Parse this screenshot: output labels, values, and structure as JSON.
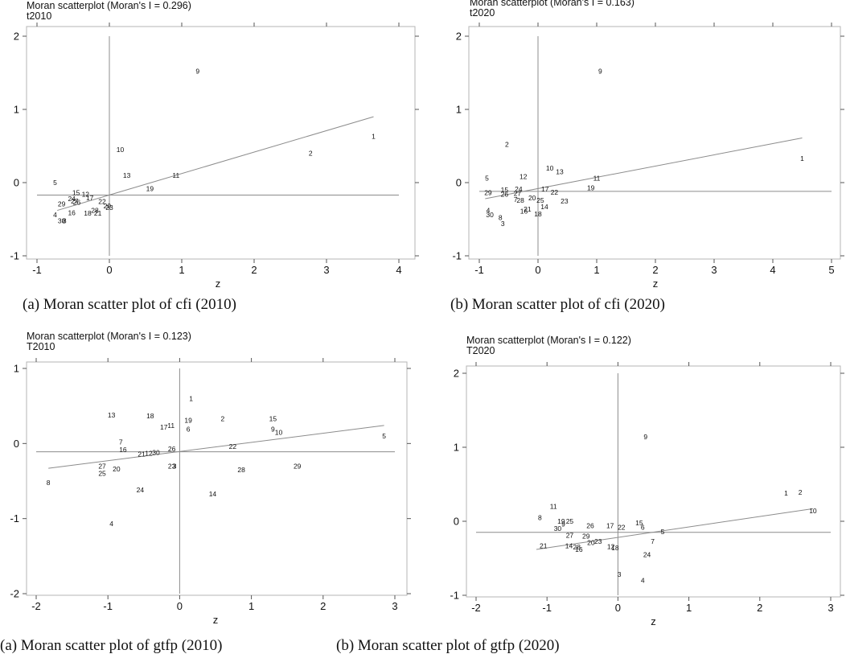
{
  "figure": {
    "captions": [
      "(a) Moran scatter plot of cfi (2010)",
      "(b) Moran scatter plot of cfi (2020)",
      "(a) Moran scatter plot of gtfp (2010)",
      "(b) Moran scatter plot of gtfp (2020)"
    ]
  },
  "chart_data": [
    {
      "type": "scatter",
      "title": "Moran scatterplot (Moran's I = 0.296)",
      "variable": "t2010",
      "xlabel": "z",
      "ylabel": "",
      "xlim": [
        -1,
        4
      ],
      "ylim": [
        -1,
        2
      ],
      "xticks": [
        -1,
        0,
        1,
        2,
        3,
        4
      ],
      "yticks": [
        -1,
        0,
        1,
        2
      ],
      "mean_y": -0.17,
      "fit_line": {
        "x": [
          -0.72,
          3.65
        ],
        "y": [
          -0.38,
          0.9
        ]
      },
      "points": [
        {
          "label": "9",
          "x": 1.22,
          "y": 1.52
        },
        {
          "label": "1",
          "x": 3.65,
          "y": 0.63
        },
        {
          "label": "2",
          "x": 2.78,
          "y": 0.4
        },
        {
          "label": "10",
          "x": 0.15,
          "y": 0.45
        },
        {
          "label": "11",
          "x": 0.92,
          "y": 0.1
        },
        {
          "label": "13",
          "x": 0.24,
          "y": 0.1
        },
        {
          "label": "19",
          "x": 0.56,
          "y": -0.08
        },
        {
          "label": "5",
          "x": -0.75,
          "y": 0.0
        },
        {
          "label": "15",
          "x": -0.46,
          "y": -0.14
        },
        {
          "label": "12",
          "x": -0.33,
          "y": -0.16
        },
        {
          "label": "17",
          "x": -0.27,
          "y": -0.21
        },
        {
          "label": "24",
          "x": -0.52,
          "y": -0.22
        },
        {
          "label": "27",
          "x": -0.48,
          "y": -0.25
        },
        {
          "label": "26",
          "x": -0.45,
          "y": -0.27
        },
        {
          "label": "29",
          "x": -0.66,
          "y": -0.29
        },
        {
          "label": "22",
          "x": -0.1,
          "y": -0.26
        },
        {
          "label": "20",
          "x": -0.03,
          "y": -0.32
        },
        {
          "label": "23",
          "x": 0.0,
          "y": -0.34
        },
        {
          "label": "16",
          "x": -0.52,
          "y": -0.41
        },
        {
          "label": "28",
          "x": -0.2,
          "y": -0.38
        },
        {
          "label": "18",
          "x": -0.3,
          "y": -0.42
        },
        {
          "label": "21",
          "x": -0.16,
          "y": -0.42
        },
        {
          "label": "4",
          "x": -0.75,
          "y": -0.44
        },
        {
          "label": "30",
          "x": -0.66,
          "y": -0.52
        },
        {
          "label": "8",
          "x": -0.62,
          "y": -0.52
        }
      ]
    },
    {
      "type": "scatter",
      "title": "Moran scatterplot (Moran's I = 0.163)",
      "variable": "t2020",
      "xlabel": "z",
      "ylabel": "",
      "xlim": [
        -1,
        5
      ],
      "ylim": [
        -1,
        2
      ],
      "xticks": [
        -1,
        0,
        1,
        2,
        3,
        4,
        5
      ],
      "yticks": [
        -1,
        0,
        1,
        2
      ],
      "mean_y": -0.12,
      "fit_line": {
        "x": [
          -0.9,
          4.5
        ],
        "y": [
          -0.22,
          0.61
        ]
      },
      "points": [
        {
          "label": "9",
          "x": 1.06,
          "y": 1.52
        },
        {
          "label": "1",
          "x": 4.5,
          "y": 0.33
        },
        {
          "label": "2",
          "x": -0.53,
          "y": 0.52
        },
        {
          "label": "10",
          "x": 0.2,
          "y": 0.2
        },
        {
          "label": "13",
          "x": 0.37,
          "y": 0.15
        },
        {
          "label": "11",
          "x": 1.0,
          "y": 0.06
        },
        {
          "label": "12",
          "x": -0.25,
          "y": 0.08
        },
        {
          "label": "5",
          "x": -0.87,
          "y": 0.06
        },
        {
          "label": "19",
          "x": 0.9,
          "y": -0.07
        },
        {
          "label": "24",
          "x": -0.33,
          "y": -0.09
        },
        {
          "label": "15",
          "x": -0.57,
          "y": -0.1
        },
        {
          "label": "29",
          "x": -0.85,
          "y": -0.14
        },
        {
          "label": "26",
          "x": -0.57,
          "y": -0.16
        },
        {
          "label": "27",
          "x": -0.35,
          "y": -0.15
        },
        {
          "label": "17",
          "x": 0.12,
          "y": -0.09
        },
        {
          "label": "22",
          "x": 0.28,
          "y": -0.13
        },
        {
          "label": "20",
          "x": -0.1,
          "y": -0.21
        },
        {
          "label": "25",
          "x": 0.04,
          "y": -0.24
        },
        {
          "label": "7",
          "x": -0.38,
          "y": -0.23
        },
        {
          "label": "28",
          "x": -0.3,
          "y": -0.24
        },
        {
          "label": "23",
          "x": 0.45,
          "y": -0.25
        },
        {
          "label": "14",
          "x": 0.11,
          "y": -0.33
        },
        {
          "label": "21",
          "x": -0.18,
          "y": -0.36
        },
        {
          "label": "16",
          "x": -0.24,
          "y": -0.39
        },
        {
          "label": "18",
          "x": 0.0,
          "y": -0.43
        },
        {
          "label": "4",
          "x": -0.85,
          "y": -0.38
        },
        {
          "label": "30",
          "x": -0.82,
          "y": -0.44
        },
        {
          "label": "8",
          "x": -0.64,
          "y": -0.48
        },
        {
          "label": "3",
          "x": -0.6,
          "y": -0.56
        }
      ]
    },
    {
      "type": "scatter",
      "title": "Moran scatterplot (Moran's I = 0.123)",
      "variable": "T2010",
      "xlabel": "z",
      "ylabel": "",
      "xlim": [
        -2,
        3
      ],
      "ylim": [
        -2,
        1
      ],
      "xticks": [
        -2,
        -1,
        0,
        1,
        2,
        3
      ],
      "yticks": [
        -2,
        -1,
        0,
        1
      ],
      "mean_y": -0.11,
      "fit_line": {
        "x": [
          -1.83,
          2.85
        ],
        "y": [
          -0.33,
          0.24
        ]
      },
      "points": [
        {
          "label": "1",
          "x": 0.16,
          "y": 0.6
        },
        {
          "label": "13",
          "x": -0.95,
          "y": 0.38
        },
        {
          "label": "18",
          "x": -0.41,
          "y": 0.37
        },
        {
          "label": "17",
          "x": -0.22,
          "y": 0.22
        },
        {
          "label": "11",
          "x": -0.12,
          "y": 0.24
        },
        {
          "label": "19",
          "x": 0.12,
          "y": 0.31
        },
        {
          "label": "6",
          "x": 0.12,
          "y": 0.19
        },
        {
          "label": "2",
          "x": 0.6,
          "y": 0.33
        },
        {
          "label": "15",
          "x": 1.3,
          "y": 0.33
        },
        {
          "label": "9",
          "x": 1.3,
          "y": 0.19
        },
        {
          "label": "10",
          "x": 1.38,
          "y": 0.15
        },
        {
          "label": "5",
          "x": 2.85,
          "y": 0.1
        },
        {
          "label": "7",
          "x": -0.82,
          "y": 0.02
        },
        {
          "label": "16",
          "x": -0.79,
          "y": -0.08
        },
        {
          "label": "21",
          "x": -0.53,
          "y": -0.14
        },
        {
          "label": "12",
          "x": -0.43,
          "y": -0.13
        },
        {
          "label": "30",
          "x": -0.33,
          "y": -0.12
        },
        {
          "label": "26",
          "x": -0.11,
          "y": -0.07
        },
        {
          "label": "22",
          "x": 0.74,
          "y": -0.04
        },
        {
          "label": "27",
          "x": -1.08,
          "y": -0.3
        },
        {
          "label": "20",
          "x": -0.88,
          "y": -0.34
        },
        {
          "label": "25",
          "x": -1.08,
          "y": -0.4
        },
        {
          "label": "23",
          "x": -0.11,
          "y": -0.3
        },
        {
          "label": "3",
          "x": -0.07,
          "y": -0.3
        },
        {
          "label": "28",
          "x": 0.86,
          "y": -0.35
        },
        {
          "label": "29",
          "x": 1.64,
          "y": -0.3
        },
        {
          "label": "8",
          "x": -1.83,
          "y": -0.52
        },
        {
          "label": "24",
          "x": -0.55,
          "y": -0.62
        },
        {
          "label": "14",
          "x": 0.46,
          "y": -0.67
        },
        {
          "label": "4",
          "x": -0.95,
          "y": -1.07
        }
      ]
    },
    {
      "type": "scatter",
      "title": "Moran scatterplot (Moran's I = 0.122)",
      "variable": "T2020",
      "xlabel": "z",
      "ylabel": "",
      "xlim": [
        -2,
        3
      ],
      "ylim": [
        -1,
        2
      ],
      "xticks": [
        -2,
        -1,
        0,
        1,
        2,
        3
      ],
      "yticks": [
        -1,
        0,
        1,
        2
      ],
      "mean_y": -0.15,
      "fit_line": {
        "x": [
          -1.15,
          2.75
        ],
        "y": [
          -0.38,
          0.17
        ]
      },
      "points": [
        {
          "label": "9",
          "x": 0.39,
          "y": 1.14
        },
        {
          "label": "1",
          "x": 2.37,
          "y": 0.38
        },
        {
          "label": "2",
          "x": 2.57,
          "y": 0.39
        },
        {
          "label": "10",
          "x": 2.75,
          "y": 0.14
        },
        {
          "label": "11",
          "x": -0.91,
          "y": 0.2
        },
        {
          "label": "8",
          "x": -1.1,
          "y": 0.05
        },
        {
          "label": "19",
          "x": -0.8,
          "y": 0.0
        },
        {
          "label": "25",
          "x": -0.68,
          "y": 0.0
        },
        {
          "label": "9",
          "x": -0.77,
          "y": -0.04
        },
        {
          "label": "30",
          "x": -0.85,
          "y": -0.1
        },
        {
          "label": "26",
          "x": -0.39,
          "y": -0.06
        },
        {
          "label": "17",
          "x": -0.11,
          "y": -0.06
        },
        {
          "label": "22",
          "x": 0.05,
          "y": -0.08
        },
        {
          "label": "15",
          "x": 0.3,
          "y": -0.02
        },
        {
          "label": "6",
          "x": 0.35,
          "y": -0.08
        },
        {
          "label": "5",
          "x": 0.63,
          "y": -0.14
        },
        {
          "label": "27",
          "x": -0.68,
          "y": -0.19
        },
        {
          "label": "29",
          "x": -0.45,
          "y": -0.2
        },
        {
          "label": "7",
          "x": 0.49,
          "y": -0.27
        },
        {
          "label": "20",
          "x": -0.38,
          "y": -0.29
        },
        {
          "label": "23",
          "x": -0.28,
          "y": -0.27
        },
        {
          "label": "21",
          "x": -1.05,
          "y": -0.33
        },
        {
          "label": "14",
          "x": -0.69,
          "y": -0.33
        },
        {
          "label": "28",
          "x": -0.58,
          "y": -0.35
        },
        {
          "label": "16",
          "x": -0.55,
          "y": -0.38
        },
        {
          "label": "12",
          "x": -0.1,
          "y": -0.34
        },
        {
          "label": "18",
          "x": -0.04,
          "y": -0.36
        },
        {
          "label": "24",
          "x": 0.41,
          "y": -0.45
        },
        {
          "label": "3",
          "x": 0.02,
          "y": -0.72
        },
        {
          "label": "4",
          "x": 0.35,
          "y": -0.8
        }
      ]
    }
  ]
}
